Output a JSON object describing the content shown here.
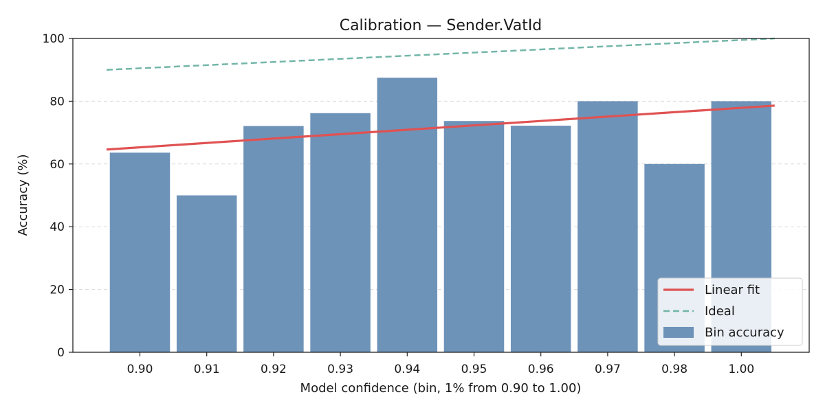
{
  "chart_data": {
    "type": "bar",
    "title": "Calibration — Sender.VatId",
    "xlabel": "Model confidence (bin, 1% from 0.90 to 1.00)",
    "ylabel": "Accuracy (%)",
    "categories": [
      "0.90",
      "0.91",
      "0.92",
      "0.93",
      "0.94",
      "0.95",
      "0.96",
      "0.97",
      "0.98",
      "1.00"
    ],
    "ylim": [
      0,
      100
    ],
    "yticks": [
      "0",
      "20",
      "40",
      "60",
      "80",
      "100"
    ],
    "grid": "y-dashed",
    "legend_position": "bottom-right",
    "series": [
      {
        "name": "Bin accuracy",
        "kind": "bar",
        "color": "#6e93b9",
        "values": [
          63.6,
          50.0,
          72.1,
          76.2,
          87.5,
          73.7,
          72.2,
          80.0,
          60.0,
          80.0
        ]
      },
      {
        "name": "Linear fit",
        "kind": "line",
        "color": "#e05252",
        "dash": "solid",
        "start": 64.6,
        "end": 78.6
      },
      {
        "name": "Ideal",
        "kind": "line",
        "color": "#72b6a8",
        "dash": "dashed",
        "start": 90.0,
        "end": 100.0
      }
    ]
  }
}
